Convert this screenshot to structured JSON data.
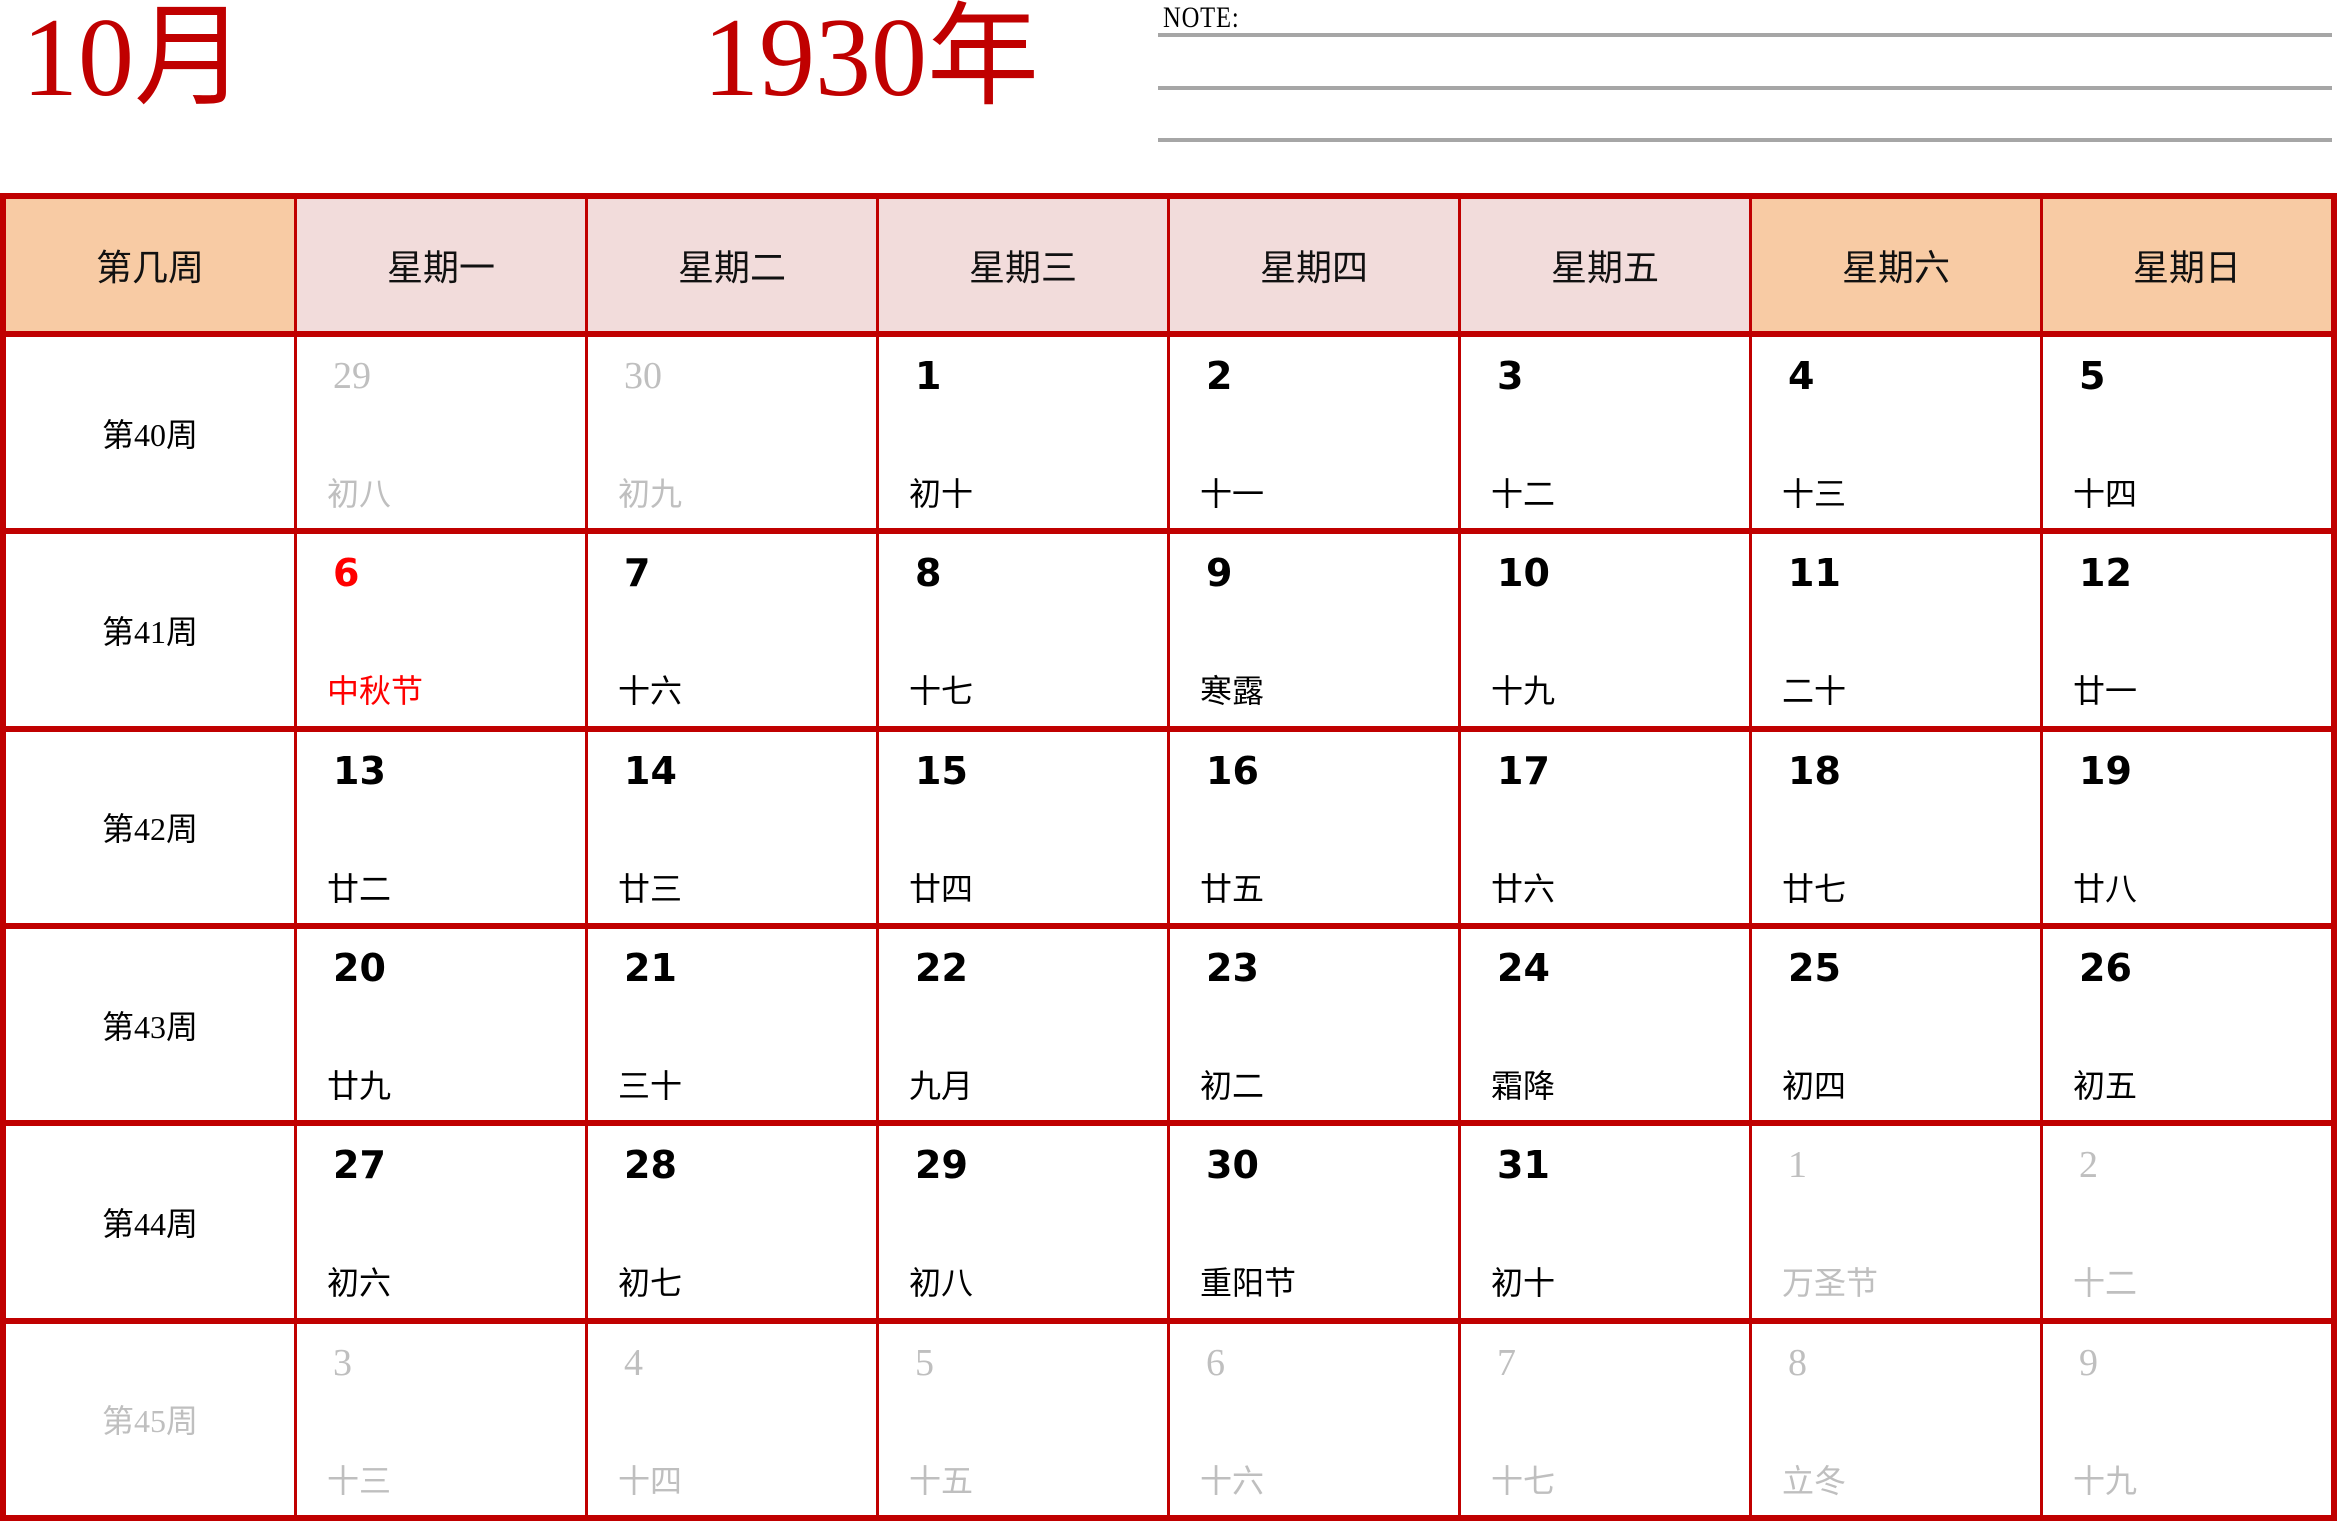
{
  "title": {
    "month": "10月",
    "year": "1930年"
  },
  "note": {
    "label": "NOTE:"
  },
  "colors": {
    "border_red": "#c00000",
    "title_red": "#c00000",
    "festival_red": "#ff0000",
    "muted_gray": "#bfbfbf",
    "note_line_gray": "#a6a6a6",
    "header_peach": "#f8cba4",
    "header_pink": "#f2dcdb"
  },
  "weekday_headers": [
    {
      "label": "第几周",
      "tone": "peach"
    },
    {
      "label": "星期一",
      "tone": "pink"
    },
    {
      "label": "星期二",
      "tone": "pink"
    },
    {
      "label": "星期三",
      "tone": "pink"
    },
    {
      "label": "星期四",
      "tone": "pink"
    },
    {
      "label": "星期五",
      "tone": "pink"
    },
    {
      "label": "星期六",
      "tone": "peach"
    },
    {
      "label": "星期日",
      "tone": "peach"
    }
  ],
  "weeks": [
    {
      "label": "第40周",
      "muted": false,
      "days": [
        {
          "day": "29",
          "lunar": "初八",
          "state": "muted"
        },
        {
          "day": "30",
          "lunar": "初九",
          "state": "muted"
        },
        {
          "day": "1",
          "lunar": "初十",
          "state": "normal"
        },
        {
          "day": "2",
          "lunar": "十一",
          "state": "normal"
        },
        {
          "day": "3",
          "lunar": "十二",
          "state": "normal"
        },
        {
          "day": "4",
          "lunar": "十三",
          "state": "normal"
        },
        {
          "day": "5",
          "lunar": "十四",
          "state": "normal"
        }
      ]
    },
    {
      "label": "第41周",
      "muted": false,
      "days": [
        {
          "day": "6",
          "lunar": "中秋节",
          "state": "highlight"
        },
        {
          "day": "7",
          "lunar": "十六",
          "state": "normal"
        },
        {
          "day": "8",
          "lunar": "十七",
          "state": "normal"
        },
        {
          "day": "9",
          "lunar": "寒露",
          "state": "normal"
        },
        {
          "day": "10",
          "lunar": "十九",
          "state": "normal"
        },
        {
          "day": "11",
          "lunar": "二十",
          "state": "normal"
        },
        {
          "day": "12",
          "lunar": "廿一",
          "state": "normal"
        }
      ]
    },
    {
      "label": "第42周",
      "muted": false,
      "days": [
        {
          "day": "13",
          "lunar": "廿二",
          "state": "normal"
        },
        {
          "day": "14",
          "lunar": "廿三",
          "state": "normal"
        },
        {
          "day": "15",
          "lunar": "廿四",
          "state": "normal"
        },
        {
          "day": "16",
          "lunar": "廿五",
          "state": "normal"
        },
        {
          "day": "17",
          "lunar": "廿六",
          "state": "normal"
        },
        {
          "day": "18",
          "lunar": "廿七",
          "state": "normal"
        },
        {
          "day": "19",
          "lunar": "廿八",
          "state": "normal"
        }
      ]
    },
    {
      "label": "第43周",
      "muted": false,
      "days": [
        {
          "day": "20",
          "lunar": "廿九",
          "state": "normal"
        },
        {
          "day": "21",
          "lunar": "三十",
          "state": "normal"
        },
        {
          "day": "22",
          "lunar": "九月",
          "state": "normal"
        },
        {
          "day": "23",
          "lunar": "初二",
          "state": "normal"
        },
        {
          "day": "24",
          "lunar": "霜降",
          "state": "normal"
        },
        {
          "day": "25",
          "lunar": "初四",
          "state": "normal"
        },
        {
          "day": "26",
          "lunar": "初五",
          "state": "normal"
        }
      ]
    },
    {
      "label": "第44周",
      "muted": false,
      "days": [
        {
          "day": "27",
          "lunar": "初六",
          "state": "normal"
        },
        {
          "day": "28",
          "lunar": "初七",
          "state": "normal"
        },
        {
          "day": "29",
          "lunar": "初八",
          "state": "normal"
        },
        {
          "day": "30",
          "lunar": "重阳节",
          "state": "normal"
        },
        {
          "day": "31",
          "lunar": "初十",
          "state": "normal"
        },
        {
          "day": "1",
          "lunar": "万圣节",
          "state": "muted"
        },
        {
          "day": "2",
          "lunar": "十二",
          "state": "muted"
        }
      ]
    },
    {
      "label": "第45周",
      "muted": true,
      "days": [
        {
          "day": "3",
          "lunar": "十三",
          "state": "muted"
        },
        {
          "day": "4",
          "lunar": "十四",
          "state": "muted"
        },
        {
          "day": "5",
          "lunar": "十五",
          "state": "muted"
        },
        {
          "day": "6",
          "lunar": "十六",
          "state": "muted"
        },
        {
          "day": "7",
          "lunar": "十七",
          "state": "muted"
        },
        {
          "day": "8",
          "lunar": "立冬",
          "state": "muted"
        },
        {
          "day": "9",
          "lunar": "十九",
          "state": "muted"
        }
      ]
    }
  ]
}
